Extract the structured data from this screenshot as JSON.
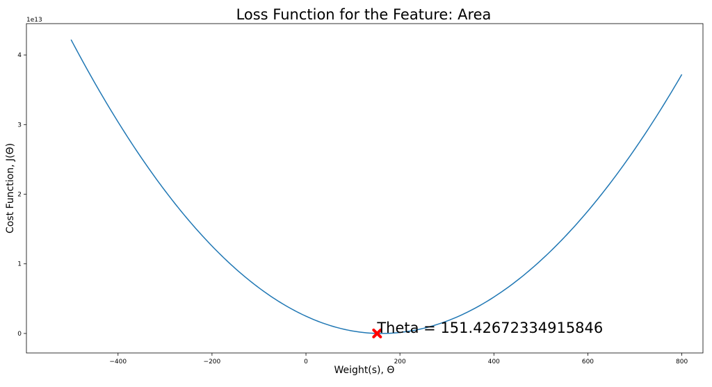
{
  "chart_data": {
    "type": "line",
    "title": "Loss Function for the Feature: Area",
    "xlabel": "Weight(s), Θ",
    "ylabel": "Cost Function, J(Θ)",
    "y_offset_label": "1e13",
    "xlim": [
      -595,
      845
    ],
    "ylim": [
      -0.28,
      4.45
    ],
    "y_scale_factor": 10000000000000.0,
    "x_ticks": [
      -400,
      -200,
      0,
      200,
      400,
      600,
      800
    ],
    "x_tick_labels": [
      "−400",
      "−200",
      "0",
      "200",
      "400",
      "600",
      "800"
    ],
    "y_ticks": [
      0,
      1,
      2,
      3,
      4
    ],
    "y_tick_labels": [
      "0",
      "1",
      "2",
      "3",
      "4"
    ],
    "series": [
      {
        "color": "#1f77b4",
        "x_range": [
          -500,
          800
        ],
        "vertex_x": 160,
        "y_at_x_min": 4.22,
        "y_at_x_max": 3.72
      }
    ],
    "marker": {
      "x": 151.42672334915846,
      "y": 0,
      "color": "#ff0000",
      "symbol": "X"
    },
    "annotation": {
      "text": "Theta = 151.42672334915846",
      "x": 151.42672334915846,
      "y": 0
    },
    "grid": false
  }
}
